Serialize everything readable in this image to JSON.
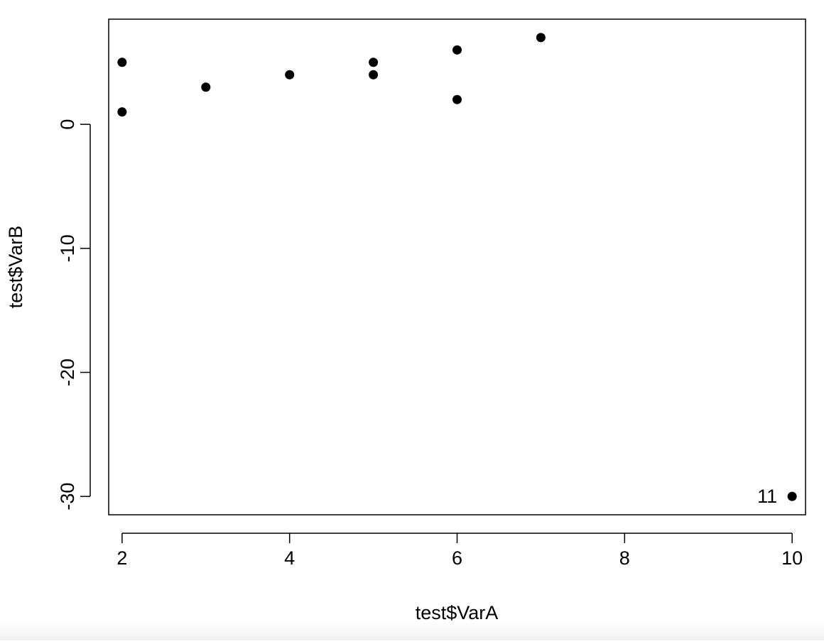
{
  "chart_data": {
    "type": "scatter",
    "xlabel": "test$VarA",
    "ylabel": "test$VarB",
    "xlim": [
      1.84,
      10.16
    ],
    "ylim": [
      -31.48,
      8.48
    ],
    "x_ticks": [
      2,
      4,
      6,
      8,
      10
    ],
    "y_ticks": [
      0,
      -10,
      -20,
      -30
    ],
    "grid": false,
    "points": [
      {
        "x": 2,
        "y": 5
      },
      {
        "x": 2,
        "y": 1
      },
      {
        "x": 3,
        "y": 3
      },
      {
        "x": 4,
        "y": 4
      },
      {
        "x": 5,
        "y": 5
      },
      {
        "x": 5,
        "y": 4
      },
      {
        "x": 6,
        "y": 6
      },
      {
        "x": 6,
        "y": 2
      },
      {
        "x": 7,
        "y": 7
      },
      {
        "x": 10,
        "y": -30
      }
    ],
    "annotations": [
      {
        "x": 10,
        "y": -30,
        "text": "11",
        "position": "left"
      }
    ],
    "marker_color": "#000000"
  }
}
